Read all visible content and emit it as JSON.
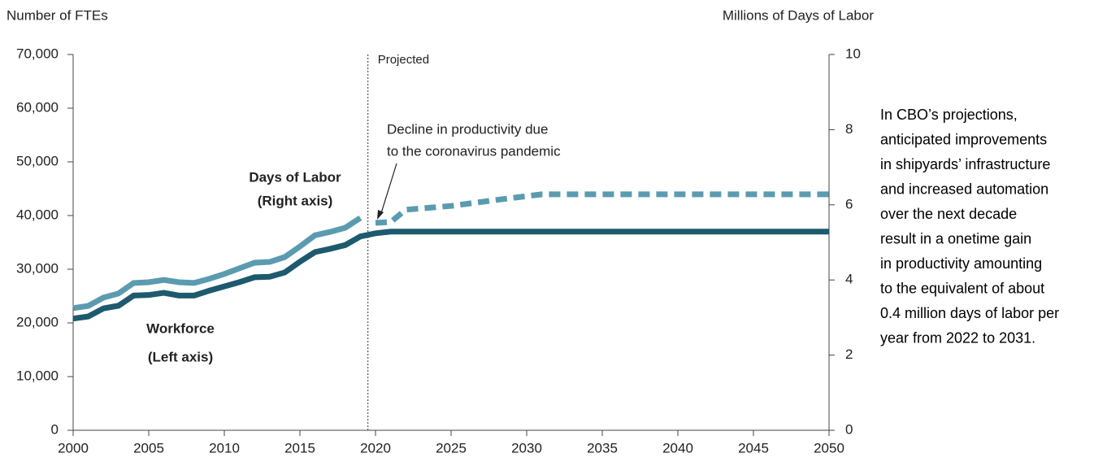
{
  "chart_data": {
    "type": "line",
    "y_label": "Number of FTEs",
    "y2_label": "Millions of Days of Labor",
    "xlim": [
      2000,
      2050
    ],
    "xticks": [
      2000,
      2005,
      2010,
      2015,
      2020,
      2025,
      2030,
      2035,
      2040,
      2045,
      2050
    ],
    "ylim": [
      0,
      70000
    ],
    "yticks": [
      0,
      {
        "value": 10000,
        "label": "10,000"
      },
      {
        "value": 20000,
        "label": "20,000"
      },
      {
        "value": 30000,
        "label": "30,000"
      },
      {
        "value": 40000,
        "label": "40,000"
      },
      {
        "value": 50000,
        "label": "50,000"
      },
      {
        "value": 60000,
        "label": "60,000"
      },
      {
        "value": 70000,
        "label": "70,000"
      }
    ],
    "y2lim": [
      0,
      10
    ],
    "y2ticks": [
      0,
      2,
      4,
      6,
      8,
      10
    ],
    "projection_start": 2019.5,
    "projection_label": "Projected",
    "series": [
      {
        "name": "Workforce",
        "axis_label": "(Left axis)",
        "color": "#1d5a6e",
        "x": [
          2000,
          2001,
          2002,
          2003,
          2004,
          2005,
          2006,
          2007,
          2008,
          2009,
          2010,
          2011,
          2012,
          2013,
          2014,
          2015,
          2016,
          2017,
          2018,
          2019,
          2020,
          2021,
          2050
        ],
        "values": [
          20800,
          21200,
          22700,
          23200,
          25100,
          25200,
          25600,
          25100,
          25100,
          26000,
          26800,
          27600,
          28500,
          28600,
          29400,
          31400,
          33200,
          33800,
          34500,
          36100,
          36700,
          37000,
          37000
        ]
      },
      {
        "name": "Days of Labor",
        "axis_label": "(Right axis)",
        "color": "#5b9bb0",
        "axis": "y2",
        "dashed_projection": true,
        "x": [
          2000,
          2001,
          2002,
          2003,
          2004,
          2005,
          2006,
          2007,
          2008,
          2009,
          2010,
          2011,
          2012,
          2013,
          2014,
          2015,
          2016,
          2017,
          2018,
          2019,
          2020,
          2021,
          2022,
          2025,
          2028,
          2031,
          2050
        ],
        "values": [
          3.25,
          3.31,
          3.53,
          3.64,
          3.92,
          3.94,
          4.0,
          3.94,
          3.92,
          4.03,
          4.16,
          4.31,
          4.46,
          4.48,
          4.61,
          4.89,
          5.19,
          5.28,
          5.39,
          5.65,
          5.52,
          5.54,
          5.87,
          5.97,
          6.13,
          6.28,
          6.28
        ]
      }
    ],
    "annotations": [
      "Decline in productivity due",
      "to the coronavirus pandemic"
    ],
    "side_note": [
      "In CBO’s projections,",
      "anticipated improvements",
      "in shipyards’ infrastructure",
      "and increased automation",
      "over the next decade",
      "result in a onetime gain",
      "in productivity amounting",
      "to the equivalent of about",
      "0.4 million days of labor per",
      "year from 2022 to 2031."
    ]
  }
}
